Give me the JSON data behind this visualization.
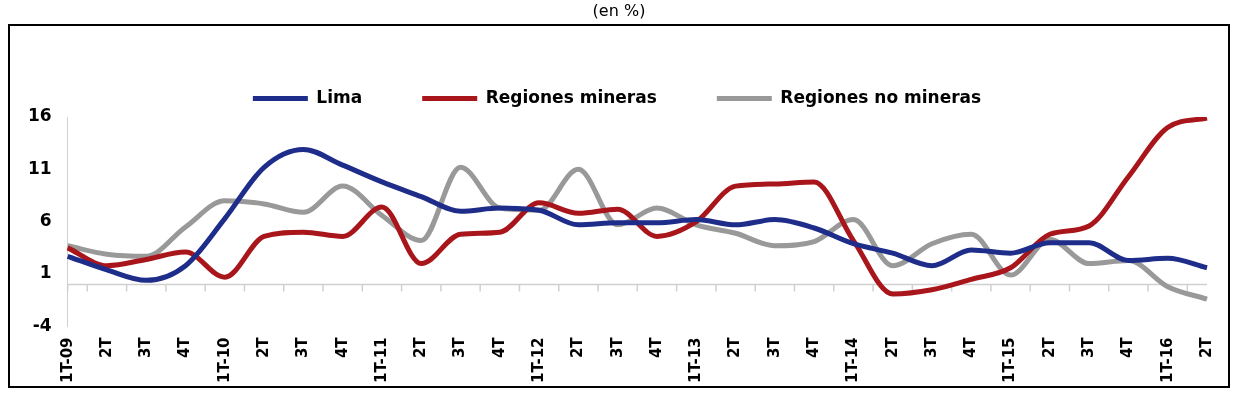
{
  "chart_data": {
    "type": "line",
    "title": "(en %)",
    "categories": [
      "1T-09",
      "2T",
      "3T",
      "4T",
      "1T-10",
      "2T",
      "3T",
      "4T",
      "1T-11",
      "2T",
      "3T",
      "4T",
      "1T-12",
      "2T",
      "3T",
      "4T",
      "1T-13",
      "2T",
      "3T",
      "4T",
      "1T-14",
      "2T",
      "3T",
      "4T",
      "1T-15",
      "2T",
      "3T",
      "4T",
      "1T-16",
      "2T"
    ],
    "series": [
      {
        "name": "Lima",
        "color": "#1f2d8a",
        "values": [
          2.7,
          1.4,
          0.4,
          1.8,
          6.3,
          11.2,
          12.9,
          11.4,
          9.8,
          8.4,
          7.0,
          7.3,
          7.1,
          5.7,
          5.9,
          5.9,
          6.2,
          5.7,
          6.2,
          5.4,
          3.9,
          3.0,
          1.8,
          3.3,
          3.0,
          4.0,
          4.0,
          2.3,
          2.5,
          1.6
        ]
      },
      {
        "name": "Regiones mineras",
        "color": "#a8161c",
        "values": [
          3.5,
          1.8,
          2.4,
          3.1,
          0.7,
          4.6,
          5.0,
          4.6,
          7.4,
          2.0,
          4.8,
          5.0,
          7.8,
          6.8,
          7.2,
          4.6,
          6.0,
          9.4,
          9.6,
          9.8,
          4.2,
          -0.9,
          -0.5,
          0.5,
          1.6,
          4.8,
          5.6,
          10.3,
          15.0,
          15.9
        ]
      },
      {
        "name": "Regiones no mineras",
        "color": "#999999",
        "values": [
          3.7,
          2.9,
          2.7,
          5.5,
          8.0,
          7.7,
          6.9,
          9.4,
          6.6,
          4.2,
          11.2,
          7.3,
          7.1,
          11.0,
          5.7,
          7.3,
          5.7,
          4.9,
          3.7,
          4.1,
          6.2,
          1.8,
          3.9,
          4.8,
          0.9,
          4.3,
          2.0,
          2.3,
          -0.2,
          -1.4
        ]
      }
    ],
    "ylim": [
      -4,
      16
    ],
    "yticks": [
      -4,
      1,
      6,
      11,
      16
    ],
    "grid": false,
    "legend": "top",
    "marker": "none",
    "line_style": "solid"
  }
}
